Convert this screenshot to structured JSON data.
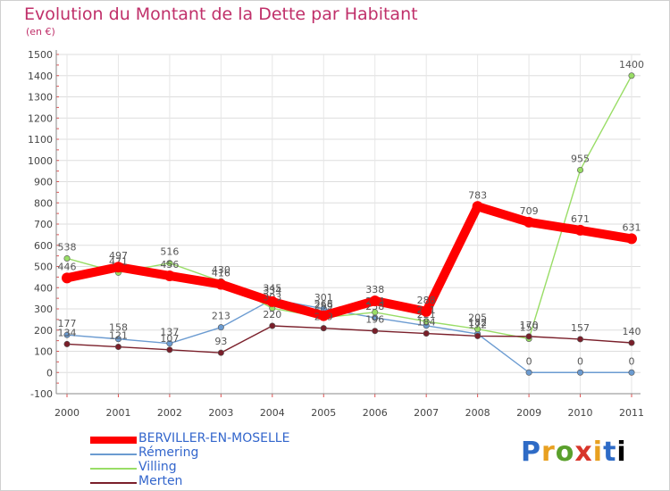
{
  "chart_data": {
    "type": "line",
    "title": "Evolution du Montant de la Dette par Habitant",
    "subtitle": "(en €)",
    "x": [
      "2000",
      "2001",
      "2002",
      "2003",
      "2004",
      "2005",
      "2006",
      "2007",
      "2008",
      "2009",
      "2010",
      "2011"
    ],
    "ylim": [
      -100,
      1500
    ],
    "yticks": [
      -100,
      0,
      100,
      200,
      300,
      400,
      500,
      600,
      700,
      800,
      900,
      1000,
      1100,
      1200,
      1300,
      1400,
      1500
    ],
    "grid": true,
    "legend_position": "bottom-left",
    "series": [
      {
        "name": "BERVILLER-EN-MOSELLE",
        "color": "#ff0000",
        "values": [
          446,
          497,
          456,
          416,
          334,
          268,
          338,
          288,
          783,
          709,
          671,
          631
        ]
      },
      {
        "name": "Rémering",
        "color": "#6b9bd1",
        "values": [
          177,
          158,
          137,
          213,
          345,
          301,
          258,
          221,
          182,
          0,
          0,
          0
        ]
      },
      {
        "name": "Villing",
        "color": "#99dd66",
        "values": [
          538,
          471,
          516,
          430,
          303,
          259,
          284,
          241,
          205,
          159,
          955,
          1400
        ]
      },
      {
        "name": "Merten",
        "color": "#7a1f2a",
        "values": [
          134,
          121,
          107,
          93,
          220,
          209,
          196,
          184,
          172,
          170,
          157,
          140
        ]
      }
    ]
  },
  "logo": {
    "letters": [
      "P",
      "r",
      "o",
      "x",
      "i",
      "t",
      "i"
    ]
  }
}
